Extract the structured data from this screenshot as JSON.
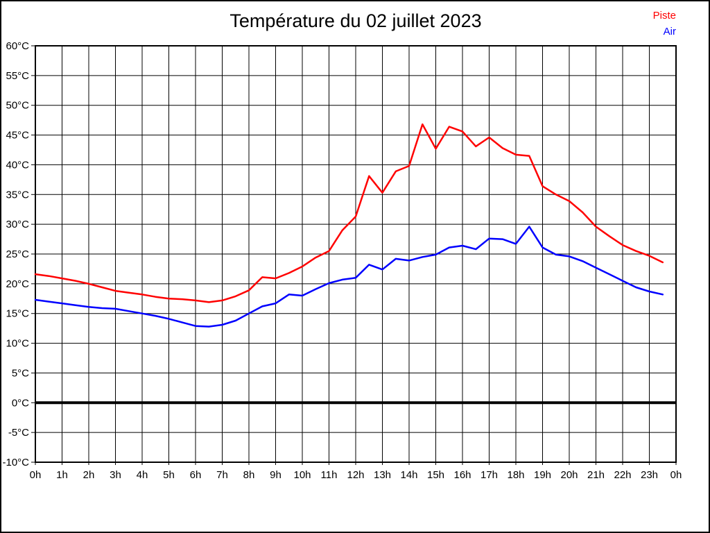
{
  "title": "Température du 02 juillet 2023",
  "legend": {
    "piste": "Piste",
    "air": "Air"
  },
  "chart_data": {
    "type": "line",
    "title": "Température du 02 juillet 2023",
    "xlabel": "",
    "ylabel": "",
    "grid": "full black grid, hourly vertical and 5°C horizontal",
    "zero_line": "bold black line at 0°C",
    "legend_position": "top-right",
    "xlim_hours": [
      0,
      24
    ],
    "ylim": [
      -10,
      60
    ],
    "x_tick_step_hours": 1,
    "y_tick_step": 5,
    "x_tick_labels": [
      "0h",
      "1h",
      "2h",
      "3h",
      "4h",
      "5h",
      "6h",
      "7h",
      "8h",
      "9h",
      "10h",
      "11h",
      "12h",
      "13h",
      "14h",
      "15h",
      "16h",
      "17h",
      "18h",
      "19h",
      "20h",
      "21h",
      "22h",
      "23h",
      "0h"
    ],
    "y_tick_labels": [
      "60°C",
      "55°C",
      "50°C",
      "45°C",
      "40°C",
      "35°C",
      "30°C",
      "25°C",
      "20°C",
      "15°C",
      "10°C",
      "5°C",
      "0°C",
      "-5°C",
      "-10°C"
    ],
    "x_hours": [
      0,
      0.5,
      1,
      1.5,
      2,
      2.5,
      3,
      3.5,
      4,
      4.5,
      5,
      5.5,
      6,
      6.5,
      7,
      7.5,
      8,
      8.5,
      9,
      9.5,
      10,
      10.5,
      11,
      11.5,
      12,
      12.5,
      13,
      13.5,
      14,
      14.5,
      15,
      15.5,
      16,
      16.5,
      17,
      17.5,
      18,
      18.5,
      19,
      19.5,
      20,
      20.5,
      21,
      21.5,
      22,
      22.5,
      23,
      23.5
    ],
    "series": [
      {
        "name": "Piste",
        "color": "#ff0000",
        "values": [
          21.6,
          21.3,
          20.9,
          20.5,
          20.0,
          19.4,
          18.8,
          18.5,
          18.2,
          17.8,
          17.5,
          17.4,
          17.2,
          16.9,
          17.2,
          17.9,
          18.9,
          21.1,
          20.9,
          21.8,
          22.9,
          24.4,
          25.5,
          29.0,
          31.3,
          38.1,
          35.3,
          38.9,
          39.8,
          46.8,
          42.7,
          46.4,
          45.6,
          43.1,
          44.6,
          42.8,
          41.7,
          41.5,
          36.4,
          35.0,
          33.9,
          32.0,
          29.6,
          28.0,
          26.5,
          25.5,
          24.7,
          23.6
        ]
      },
      {
        "name": "Air",
        "color": "#0000ff",
        "values": [
          17.3,
          17.0,
          16.7,
          16.4,
          16.1,
          15.9,
          15.8,
          15.4,
          15.0,
          14.6,
          14.1,
          13.5,
          12.9,
          12.8,
          13.1,
          13.8,
          15.0,
          16.2,
          16.7,
          18.2,
          18.0,
          19.1,
          20.1,
          20.7,
          21.0,
          23.2,
          22.4,
          24.2,
          23.9,
          24.5,
          24.9,
          26.1,
          26.4,
          25.8,
          27.6,
          27.5,
          26.7,
          29.6,
          26.1,
          24.9,
          24.6,
          23.8,
          22.7,
          21.6,
          20.5,
          19.4,
          18.7,
          18.2
        ]
      }
    ]
  }
}
